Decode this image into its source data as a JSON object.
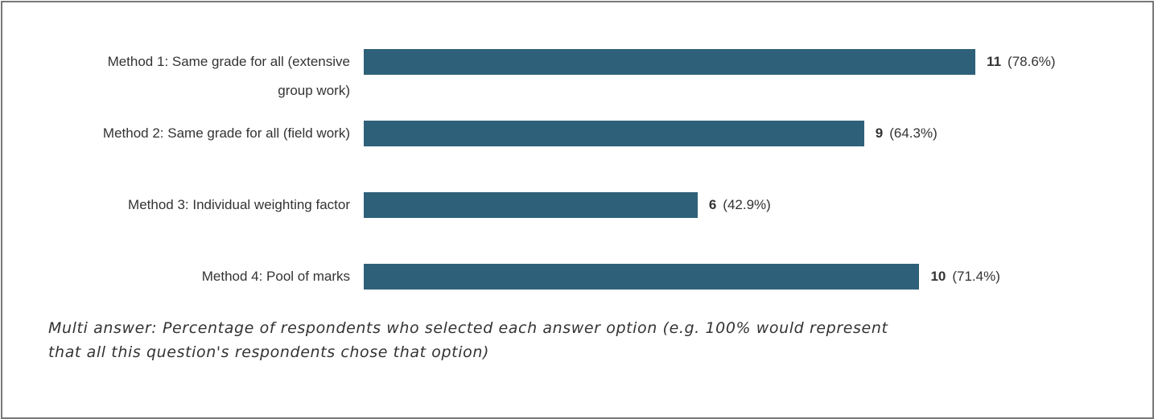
{
  "chart_data": {
    "type": "bar",
    "orientation": "horizontal",
    "categories": [
      "Method 1: Same grade for all (extensive group work)",
      "Method 2: Same grade for all (field work)",
      "Method 3: Individual weighting factor",
      "Method 4: Pool of marks"
    ],
    "values": [
      78.6,
      64.3,
      42.9,
      71.4
    ],
    "value_labels": [
      "(78.6%)",
      "(64.3%)",
      "(42.9%)",
      "(71.4%)"
    ],
    "counts": [
      11,
      9,
      6,
      10
    ],
    "color": "#2e6179",
    "xlim": [
      0,
      100
    ],
    "note": "Multi answer: Percentage of respondents who selected each answer option (e.g. 100% would represent that all this question's respondents chose that option)"
  }
}
